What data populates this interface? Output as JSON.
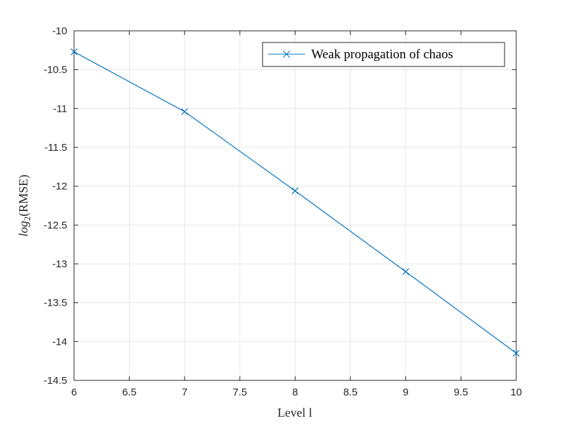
{
  "chart_data": {
    "type": "line",
    "x": [
      6,
      7,
      8,
      9,
      10
    ],
    "series": [
      {
        "name": "Weak propagation of chaos",
        "values": [
          -10.27,
          -11.04,
          -12.06,
          -13.1,
          -14.15
        ],
        "color": "#0072BD",
        "marker": "x"
      }
    ],
    "xlabel": "Level l",
    "ylabel_main": "log",
    "ylabel_sub": "2",
    "ylabel_rest": "(RMSE)",
    "xlim": [
      6,
      10
    ],
    "ylim": [
      -14.5,
      -10
    ],
    "xticks": [
      6,
      6.5,
      7,
      7.5,
      8,
      8.5,
      9,
      9.5,
      10
    ],
    "xtick_labels": [
      "6",
      "6.5",
      "7",
      "7.5",
      "8",
      "8.5",
      "9",
      "9.5",
      "10"
    ],
    "yticks": [
      -10,
      -10.5,
      -11,
      -11.5,
      -12,
      -12.5,
      -13,
      -13.5,
      -14,
      -14.5
    ],
    "ytick_labels": [
      "-10",
      "-10.5",
      "-11",
      "-11.5",
      "-12",
      "-12.5",
      "-13",
      "-13.5",
      "-14",
      "-14.5"
    ],
    "grid": true,
    "legend_position": "top-right"
  }
}
